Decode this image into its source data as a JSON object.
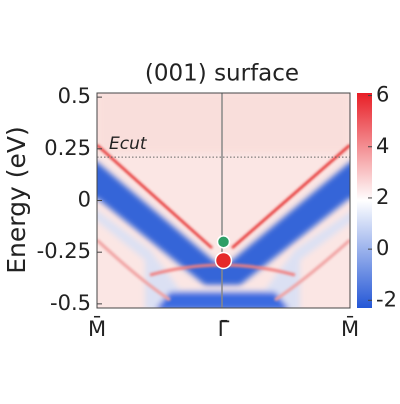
{
  "chart_data": {
    "type": "heatmap",
    "title": "(001) surface",
    "ylabel": "Energy (eV)",
    "categories": [
      "M̄",
      "Γ̄",
      "M̄"
    ],
    "ylim": [
      -0.52,
      0.52
    ],
    "yticks": [
      0.5,
      0.25,
      0,
      -0.25,
      -0.5
    ],
    "annotation": {
      "text": "Ecut",
      "y": 0.21
    },
    "markers": [
      {
        "color": "#2e9e66",
        "category": 1,
        "y": -0.2
      },
      {
        "color": "#e52a2a",
        "category": 1,
        "y": -0.29
      }
    ],
    "clim": [
      -2.3,
      6.1
    ],
    "cticks": [
      6,
      4,
      2,
      0,
      -2
    ],
    "colormap": [
      "#2457d6",
      "#ffffff",
      "#e81e26"
    ]
  }
}
